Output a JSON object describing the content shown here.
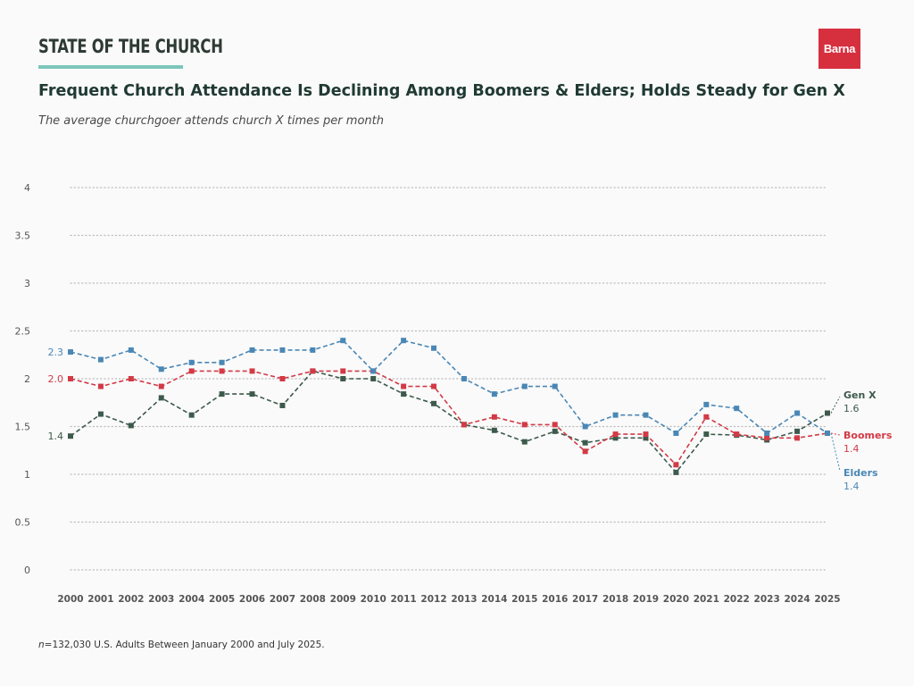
{
  "header": {
    "brand": "STATE OF THE CHURCH",
    "logo_text": "Barna",
    "title": "Frequent Church Attendance Is Declining Among Boomers & Elders; Holds Steady for Gen X",
    "subtitle": "The average churchgoer attends church X times per month"
  },
  "footnote": {
    "n_symbol": "n",
    "text": "=132,030 U.S. Adults Between January 2000 and July 2025."
  },
  "colors": {
    "gen_x": "#3d5a4c",
    "boomers": "#d23a45",
    "elders": "#4a87b5",
    "grid": "#bdbdbd",
    "axis_text": "#555555",
    "brand_accent": "#7cc6bb",
    "logo_bg": "#d6303f"
  },
  "chart_data": {
    "type": "line",
    "title": "Frequent Church Attendance Is Declining Among Boomers & Elders; Holds Steady for Gen X",
    "subtitle": "The average churchgoer attends church X times per month",
    "x": [
      "2000",
      "2001",
      "2002",
      "2003",
      "2004",
      "2005",
      "2006",
      "2007",
      "2008",
      "2009",
      "2010",
      "2011",
      "2012",
      "2013",
      "2014",
      "2015",
      "2016",
      "2017",
      "2018",
      "2019",
      "2020",
      "2021",
      "2022",
      "2023",
      "2024",
      "2025"
    ],
    "ylim": [
      0,
      4
    ],
    "yticks": [
      "0",
      "0.5",
      "1",
      "1.5",
      "2",
      "2.5",
      "3",
      "3.5",
      "4"
    ],
    "grid": "horizontal dotted",
    "line_style": "dashed with square markers",
    "series": [
      {
        "name": "Gen X",
        "key": "gen_x",
        "values": [
          1.4,
          1.63,
          1.51,
          1.8,
          1.62,
          1.84,
          1.84,
          1.72,
          2.08,
          2.0,
          2.0,
          1.84,
          1.74,
          1.52,
          1.46,
          1.34,
          1.45,
          1.33,
          1.38,
          1.38,
          1.02,
          1.42,
          1.41,
          1.36,
          1.45,
          1.64
        ],
        "start_label": "1.4",
        "end_label": "1.6"
      },
      {
        "name": "Boomers",
        "key": "boomers",
        "values": [
          2.0,
          1.92,
          2.0,
          1.92,
          2.08,
          2.08,
          2.08,
          2.0,
          2.08,
          2.08,
          2.08,
          1.92,
          1.92,
          1.52,
          1.6,
          1.52,
          1.52,
          1.24,
          1.42,
          1.42,
          1.1,
          1.6,
          1.42,
          1.38,
          1.38,
          1.43
        ],
        "start_label": "2.0",
        "end_label": "1.4"
      },
      {
        "name": "Elders",
        "key": "elders",
        "values": [
          2.28,
          2.2,
          2.3,
          2.1,
          2.17,
          2.17,
          2.3,
          2.3,
          2.3,
          2.4,
          2.08,
          2.4,
          2.32,
          2.0,
          1.84,
          1.92,
          1.92,
          1.5,
          1.62,
          1.62,
          1.43,
          1.73,
          1.69,
          1.43,
          1.64,
          1.43
        ],
        "start_label": "2.3",
        "end_label": "1.4"
      }
    ]
  }
}
